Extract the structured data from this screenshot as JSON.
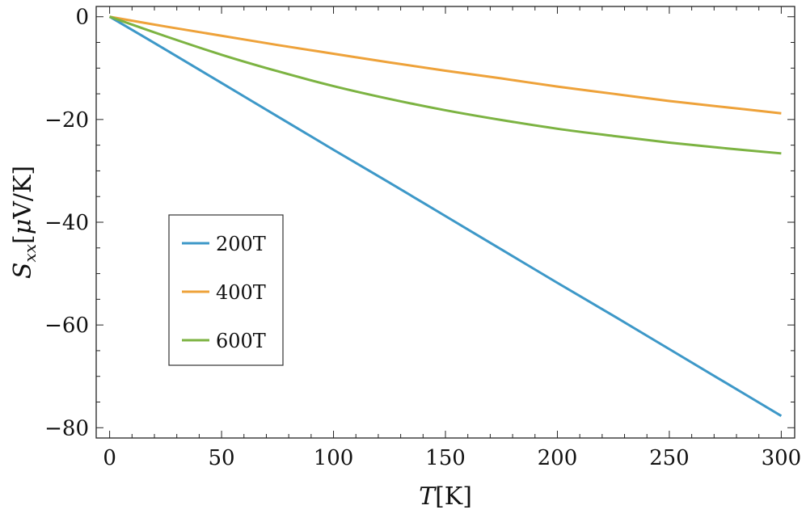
{
  "chart_data": {
    "type": "line",
    "xlabel": "T[K]",
    "ylabel": "S_xx[μV/K]",
    "xlim": [
      -6,
      306
    ],
    "ylim": [
      -82,
      2
    ],
    "xticks": [
      0,
      50,
      100,
      150,
      200,
      250,
      300
    ],
    "yticks": [
      0,
      -20,
      -40,
      -60,
      -80
    ],
    "xtick_labels": [
      "0",
      "50",
      "100",
      "150",
      "200",
      "250",
      "300"
    ],
    "ytick_labels": [
      "0",
      "−20",
      "−40",
      "−60",
      "−80"
    ],
    "grid": false,
    "legend_position": "center-left",
    "x": [
      0,
      25,
      50,
      75,
      100,
      125,
      150,
      175,
      200,
      225,
      250,
      275,
      300
    ],
    "series": [
      {
        "name": "200T",
        "color": "#3d98c8",
        "values": [
          0,
          -6.4,
          -12.9,
          -19.4,
          -25.9,
          -32.3,
          -38.8,
          -45.3,
          -51.8,
          -58.2,
          -64.7,
          -71.2,
          -77.7
        ]
      },
      {
        "name": "400T",
        "color": "#eea23a",
        "values": [
          0,
          -1.9,
          -3.7,
          -5.5,
          -7.2,
          -8.9,
          -10.5,
          -12.0,
          -13.6,
          -15.0,
          -16.4,
          -17.6,
          -18.8
        ]
      },
      {
        "name": "600T",
        "color": "#7cb342",
        "values": [
          0,
          -3.8,
          -7.4,
          -10.6,
          -13.5,
          -16.0,
          -18.2,
          -20.1,
          -21.8,
          -23.2,
          -24.5,
          -25.6,
          -26.6
        ]
      }
    ]
  }
}
